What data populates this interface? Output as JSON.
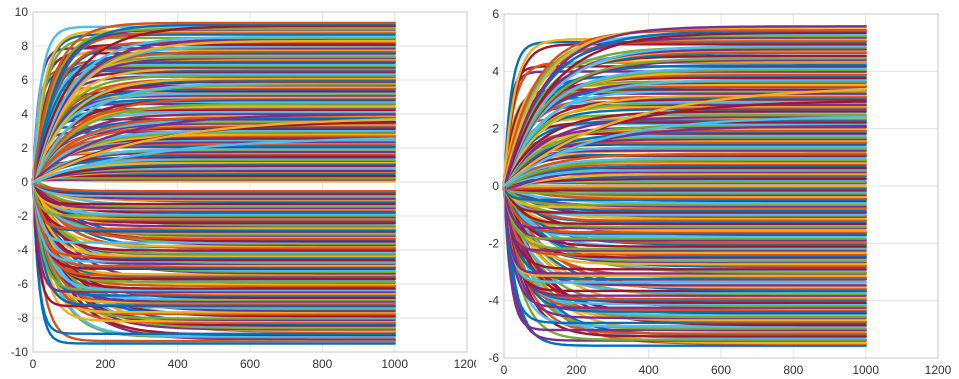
{
  "palette": [
    "#0072BD",
    "#D95319",
    "#EDB120",
    "#7E2F8E",
    "#77AC30",
    "#4DBEEE",
    "#A2142F"
  ],
  "chart_data": [
    {
      "type": "line",
      "title": "",
      "xlabel": "",
      "ylabel": "",
      "grid": true,
      "legend": "none",
      "xlim": [
        0,
        1200
      ],
      "ylim": [
        -10,
        10
      ],
      "x_range_of_series": [
        0,
        1000
      ],
      "x_ticks": [
        0,
        200,
        400,
        600,
        800,
        1000,
        1200
      ],
      "y_ticks": [
        -10,
        -8,
        -6,
        -4,
        -2,
        0,
        2,
        4,
        6,
        8,
        10
      ],
      "x_tick_labels": [
        "0",
        "200",
        "400",
        "600",
        "800",
        "1000",
        "1200"
      ],
      "y_tick_labels": [
        "-10",
        "-8",
        "-6",
        "-4",
        "-2",
        "0",
        "2",
        "4",
        "6",
        "8",
        "10"
      ],
      "series_description": "about 240 trajectories starting near 0 and settling to steady values spread between -9.5 and 9.4; no trajectory settles between -0.5 and 0",
      "steady_state_range": [
        -9.5,
        9.4
      ],
      "gap_range": [
        -0.5,
        0
      ]
    },
    {
      "type": "line",
      "title": "",
      "xlabel": "",
      "ylabel": "",
      "grid": true,
      "legend": "none",
      "xlim": [
        0,
        1200
      ],
      "ylim": [
        -6,
        6
      ],
      "x_range_of_series": [
        0,
        1000
      ],
      "x_ticks": [
        0,
        200,
        400,
        600,
        800,
        1000,
        1200
      ],
      "y_ticks": [
        -6,
        -4,
        -2,
        0,
        2,
        4,
        6
      ],
      "x_tick_labels": [
        "0",
        "200",
        "400",
        "600",
        "800",
        "1000",
        "1200"
      ],
      "y_tick_labels": [
        "-6",
        "-4",
        "-2",
        "0",
        "2",
        "4",
        "6"
      ],
      "series_description": "about 200 trajectories starting near 0 and settling to steady values spread between -5.6 and 5.6",
      "steady_state_range": [
        -5.6,
        5.6
      ]
    }
  ]
}
